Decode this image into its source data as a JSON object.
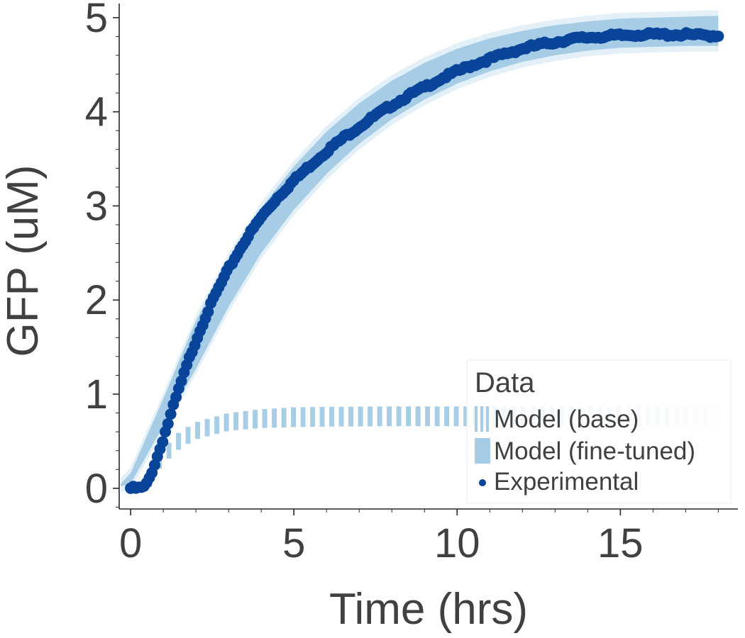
{
  "chart_data": {
    "type": "line",
    "xlabel": "Time (hrs)",
    "ylabel": "GFP (uM)",
    "xlim": [
      -0.35,
      18.6
    ],
    "ylim": [
      -0.22,
      5.15
    ],
    "x_ticks": [
      0,
      5,
      10,
      15
    ],
    "y_ticks": [
      0,
      1,
      2,
      3,
      4,
      5
    ],
    "grid": false,
    "legend": {
      "title": "Data",
      "placement": "bottom-right",
      "entries": [
        "Model (base)",
        "Model (fine-tuned)",
        "Experimental"
      ]
    },
    "colors": {
      "model_band": "#a6cde5",
      "experimental": "#08449a",
      "axis": "#262626",
      "text": "#404040"
    },
    "series": [
      {
        "name": "Model (base)",
        "style": "dashed band",
        "x": [
          0,
          0.5,
          1,
          1.5,
          2,
          3,
          4,
          5,
          6,
          8,
          10,
          12,
          14,
          16,
          18
        ],
        "lower": [
          0,
          0.04,
          0.26,
          0.42,
          0.52,
          0.61,
          0.64,
          0.65,
          0.655,
          0.66,
          0.66,
          0.66,
          0.66,
          0.66,
          0.66
        ],
        "upper": [
          0,
          0.09,
          0.42,
          0.6,
          0.7,
          0.8,
          0.84,
          0.86,
          0.865,
          0.87,
          0.87,
          0.87,
          0.87,
          0.87,
          0.87
        ]
      },
      {
        "name": "Model (fine-tuned)",
        "style": "filled band",
        "x": [
          -0.3,
          0,
          1,
          2,
          3,
          4,
          5,
          6,
          7,
          8,
          9,
          10,
          11,
          12,
          13,
          14,
          15,
          16,
          17,
          18
        ],
        "lower": [
          0.02,
          0.05,
          0.66,
          1.27,
          1.93,
          2.5,
          2.96,
          3.34,
          3.66,
          3.92,
          4.13,
          4.3,
          4.43,
          4.53,
          4.6,
          4.65,
          4.68,
          4.69,
          4.7,
          4.7
        ],
        "upper": [
          0.05,
          0.16,
          0.95,
          1.78,
          2.44,
          2.98,
          3.42,
          3.79,
          4.09,
          4.33,
          4.52,
          4.67,
          4.78,
          4.86,
          4.92,
          4.96,
          4.99,
          5.0,
          5.01,
          5.02
        ]
      },
      {
        "name": "Experimental",
        "style": "markers",
        "x": [
          0,
          0.1,
          0.2,
          0.3,
          0.4,
          0.5,
          0.6,
          0.7,
          0.8,
          0.9,
          1.0,
          1.2,
          1.4,
          1.6,
          1.8,
          2.0,
          2.3,
          2.6,
          3.0,
          3.5,
          4.0,
          4.5,
          5.0,
          5.5,
          6.0,
          6.5,
          7.0,
          7.5,
          8.0,
          8.5,
          9.0,
          9.5,
          10.0,
          10.5,
          11.0,
          11.5,
          12.0,
          12.5,
          13.0,
          13.5,
          14.0,
          14.5,
          15.0,
          15.5,
          16.0,
          16.5,
          17.0,
          17.5,
          18.0
        ],
        "y": [
          0.0,
          0.0,
          0.0,
          0.0,
          0.01,
          0.05,
          0.13,
          0.22,
          0.32,
          0.42,
          0.53,
          0.75,
          0.97,
          1.18,
          1.38,
          1.57,
          1.83,
          2.06,
          2.33,
          2.63,
          2.88,
          3.09,
          3.27,
          3.43,
          3.58,
          3.72,
          3.84,
          3.96,
          4.07,
          4.17,
          4.26,
          4.35,
          4.43,
          4.5,
          4.56,
          4.62,
          4.67,
          4.71,
          4.74,
          4.77,
          4.79,
          4.8,
          4.81,
          4.82,
          4.82,
          4.82,
          4.82,
          4.81,
          4.81
        ]
      }
    ]
  }
}
